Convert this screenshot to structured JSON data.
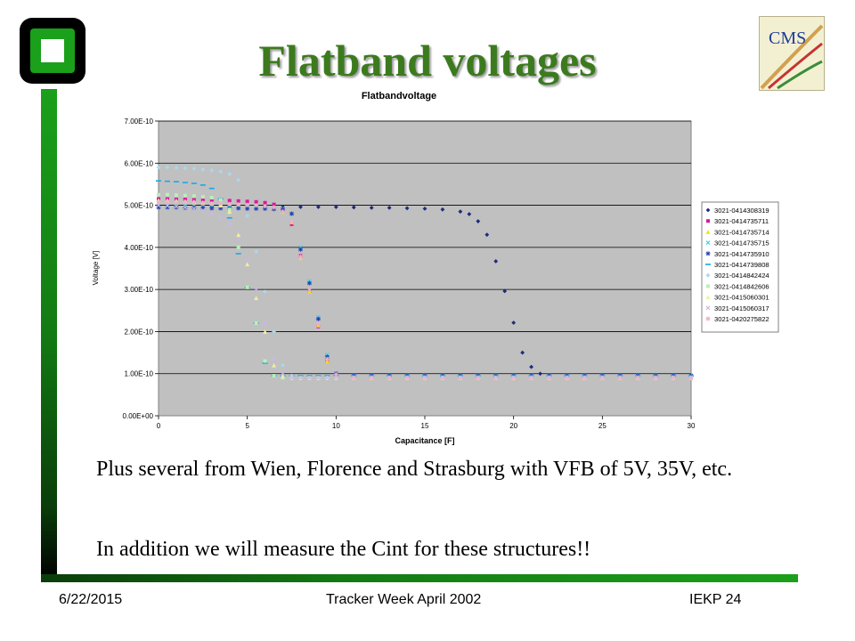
{
  "slide": {
    "title": "Flatband voltages",
    "text1": "Plus several from Wien, Florence and Strasburg with VFB of 5V, 35V, etc.",
    "text2": "In addition we will measure the Cint for these structures!!",
    "footer_date": "6/22/2015",
    "footer_center": "Tracker Week April 2002",
    "footer_right": "IEKP   24",
    "logo_text": "CMS"
  },
  "colors": {
    "title": "#3c7a1e",
    "accent_bar": "#1aa01a",
    "plot_bg": "#c0c0c0"
  },
  "chart_data": {
    "type": "scatter",
    "title": "Flatbandvoltage",
    "xlabel": "Capacitance [F]",
    "ylabel": "Voltage [V]",
    "xlim": [
      0,
      30
    ],
    "ylim": [
      0,
      7e-10
    ],
    "xticks": [
      0,
      5,
      10,
      15,
      20,
      25,
      30
    ],
    "xtick_labels": [
      "0",
      "5",
      "10",
      "15",
      "20",
      "25",
      "30"
    ],
    "yticks": [
      0,
      1e-10,
      2e-10,
      3e-10,
      4e-10,
      5e-10,
      6e-10,
      7e-10
    ],
    "ytick_labels": [
      "0.00E+00",
      "1.00E-10",
      "2.00E-10",
      "3.00E-10",
      "4.00E-10",
      "5.00E-10",
      "6.00E-10",
      "7.00E-10"
    ],
    "grid": true,
    "legend_position": "right",
    "series": [
      {
        "name": "3021-0414308319",
        "color": "#1f2a7a",
        "marker": "diamond",
        "x": [
          0,
          1,
          2,
          3,
          4,
          5,
          6,
          7,
          8,
          9,
          10,
          11,
          12,
          13,
          14,
          15,
          16,
          17,
          17.5,
          18,
          18.5,
          19,
          19.5,
          20,
          20.5,
          21,
          21.5,
          22,
          23,
          24,
          25,
          26,
          27,
          28,
          29,
          30
        ],
        "y": [
          4.97e-10,
          4.97e-10,
          4.97e-10,
          4.97e-10,
          4.97e-10,
          4.97e-10,
          4.96e-10,
          4.96e-10,
          4.96e-10,
          4.96e-10,
          4.96e-10,
          4.95e-10,
          4.94e-10,
          4.94e-10,
          4.93e-10,
          4.92e-10,
          4.9e-10,
          4.85e-10,
          4.79e-10,
          4.62e-10,
          4.3e-10,
          3.67e-10,
          2.96e-10,
          2.21e-10,
          1.5e-10,
          1.16e-10,
          1e-10,
          9.5e-11,
          9.2e-11,
          9.1e-11,
          9e-11,
          9e-11,
          9e-11,
          9e-11,
          9e-11,
          9e-11
        ]
      },
      {
        "name": "3021-0414735711",
        "color": "#d8189c",
        "marker": "square",
        "x": [
          0,
          0.5,
          1,
          1.5,
          2,
          2.5,
          3,
          3.5,
          4,
          4.5,
          5,
          5.5,
          6,
          6.5,
          7,
          7.5,
          8,
          8.5,
          9,
          9.5,
          10,
          11,
          12,
          13,
          14,
          15,
          16,
          17,
          18,
          19,
          20,
          21,
          22,
          23,
          24,
          25,
          26,
          27,
          28,
          29,
          30
        ],
        "y": [
          5.15e-10,
          5.15e-10,
          5.14e-10,
          5.14e-10,
          5.13e-10,
          5.13e-10,
          5.12e-10,
          5.12e-10,
          5.11e-10,
          5.1e-10,
          5.09e-10,
          5.08e-10,
          5.06e-10,
          5.02e-10,
          4.9e-10,
          4.55e-10,
          3.8e-10,
          2.95e-10,
          2.12e-10,
          1.3e-10,
          9.5e-11,
          9e-11,
          9e-11,
          9e-11,
          9e-11,
          9e-11,
          9e-11,
          9e-11,
          9e-11,
          9e-11,
          9e-11,
          9e-11,
          9e-11,
          9e-11,
          9e-11,
          9e-11,
          9e-11,
          9e-11,
          9e-11,
          9e-11,
          9e-11
        ]
      },
      {
        "name": "3021-0414735714",
        "color": "#f0e01a",
        "marker": "triangle",
        "x": [
          0,
          0.5,
          1,
          1.5,
          2,
          2.5,
          3,
          3.5,
          4,
          4.5,
          5,
          5.5,
          6,
          6.5,
          7,
          7.5,
          8,
          8.5,
          9,
          9.5,
          10,
          11,
          12,
          13,
          14,
          15,
          16,
          17,
          18,
          19,
          20,
          21,
          22,
          23,
          24,
          25,
          26,
          27,
          28,
          29,
          30
        ],
        "y": [
          5.08e-10,
          5.08e-10,
          5.07e-10,
          5.07e-10,
          5.06e-10,
          5.05e-10,
          5.04e-10,
          5.04e-10,
          5.03e-10,
          5.02e-10,
          5.01e-10,
          5e-10,
          4.98e-10,
          4.95e-10,
          4.85e-10,
          4.6e-10,
          3.75e-10,
          2.95e-10,
          2.15e-10,
          1.3e-10,
          9.5e-11,
          9e-11,
          9e-11,
          9e-11,
          9e-11,
          9e-11,
          9e-11,
          9e-11,
          9e-11,
          9e-11,
          9e-11,
          9e-11,
          9e-11,
          9e-11,
          9e-11,
          9e-11,
          9e-11,
          9e-11,
          9e-11,
          9e-11,
          9e-11
        ]
      },
      {
        "name": "3021-0414735715",
        "color": "#38d8e8",
        "marker": "x",
        "x": [
          0,
          0.5,
          1,
          1.5,
          2,
          2.5,
          3,
          3.5,
          4,
          4.5,
          5,
          5.5,
          6,
          6.5,
          7,
          7.5,
          8,
          8.5,
          9,
          9.5,
          10,
          11,
          12,
          13,
          14,
          15,
          16,
          17,
          18,
          19,
          20,
          21,
          22,
          23,
          24,
          25,
          26,
          27,
          28,
          29,
          30
        ],
        "y": [
          5e-10,
          5e-10,
          4.99e-10,
          4.99e-10,
          4.98e-10,
          4.98e-10,
          4.97e-10,
          4.97e-10,
          4.96e-10,
          4.96e-10,
          4.96e-10,
          4.95e-10,
          4.95e-10,
          4.94e-10,
          4.92e-10,
          4.8e-10,
          4e-10,
          3.2e-10,
          2.35e-10,
          1.45e-10,
          1e-10,
          9.5e-11,
          9.5e-11,
          9.5e-11,
          9.5e-11,
          9.5e-11,
          9.5e-11,
          9.5e-11,
          9.5e-11,
          9.5e-11,
          9.5e-11,
          9.5e-11,
          9.5e-11,
          9.5e-11,
          9.5e-11,
          9.5e-11,
          9.5e-11,
          9.5e-11,
          9.5e-11,
          9.5e-11,
          9.5e-11
        ]
      },
      {
        "name": "3021-0414735910",
        "color": "#2a3fb0",
        "marker": "star",
        "x": [
          0,
          0.5,
          1,
          1.5,
          2,
          2.5,
          3,
          3.5,
          4,
          4.5,
          5,
          5.5,
          6,
          6.5,
          7,
          7.5,
          8,
          8.5,
          9,
          9.5,
          10,
          11,
          12,
          13,
          14,
          15,
          16,
          17,
          18,
          19,
          20,
          21,
          22,
          23,
          24,
          25,
          26,
          27,
          28,
          29,
          30
        ],
        "y": [
          4.95e-10,
          4.95e-10,
          4.95e-10,
          4.94e-10,
          4.94e-10,
          4.94e-10,
          4.93e-10,
          4.93e-10,
          4.93e-10,
          4.93e-10,
          4.92e-10,
          4.92e-10,
          4.92e-10,
          4.91e-10,
          4.9e-10,
          4.8e-10,
          3.95e-10,
          3.15e-10,
          2.3e-10,
          1.4e-10,
          1e-10,
          9.5e-11,
          9.5e-11,
          9.5e-11,
          9.5e-11,
          9.5e-11,
          9.5e-11,
          9.5e-11,
          9.5e-11,
          9.5e-11,
          9.5e-11,
          9.5e-11,
          9.5e-11,
          9.5e-11,
          9.5e-11,
          9.5e-11,
          9.5e-11,
          9.5e-11,
          9.5e-11,
          9.5e-11,
          9.5e-11
        ]
      },
      {
        "name": "3021-0414739808",
        "color": "#18a8e8",
        "marker": "dash",
        "x": [
          0,
          0.5,
          1,
          1.5,
          2,
          2.5,
          3,
          3.5,
          4,
          4.5,
          5,
          5.5,
          6,
          6.5,
          7,
          7.5,
          8,
          8.5,
          9,
          9.5,
          10,
          11,
          12,
          13,
          14,
          15,
          16,
          17,
          18,
          19,
          20,
          21,
          22,
          23,
          24,
          25,
          26,
          27,
          28,
          29,
          30
        ],
        "y": [
          5.58e-10,
          5.57e-10,
          5.56e-10,
          5.54e-10,
          5.52e-10,
          5.48e-10,
          5.4e-10,
          5.15e-10,
          4.7e-10,
          3.85e-10,
          3.05e-10,
          2.2e-10,
          1.25e-10,
          9.5e-11,
          9.5e-11,
          9.5e-11,
          9.5e-11,
          9.5e-11,
          9.5e-11,
          9.5e-11,
          9.5e-11,
          9.5e-11,
          9.5e-11,
          9.5e-11,
          9.5e-11,
          9.5e-11,
          9.5e-11,
          9.5e-11,
          9.5e-11,
          9.5e-11,
          9.5e-11,
          9.5e-11,
          9.5e-11,
          9.5e-11,
          9.5e-11,
          9.5e-11,
          9.5e-11,
          9.5e-11,
          9.5e-11,
          9.5e-11,
          9.5e-11
        ]
      },
      {
        "name": "3021-0414842424",
        "color": "#a8d8f0",
        "marker": "diamond",
        "x": [
          0,
          0.5,
          1,
          1.5,
          2,
          2.5,
          3,
          3.5,
          4,
          4.5,
          5,
          5.5,
          6,
          6.5,
          7,
          7.5,
          8,
          8.5,
          9,
          9.5,
          10,
          11,
          12,
          13,
          14,
          15,
          16,
          17,
          18,
          19,
          20,
          21,
          22,
          23,
          24,
          25,
          26,
          27,
          28,
          29,
          30
        ],
        "y": [
          5.9e-10,
          5.9e-10,
          5.89e-10,
          5.88e-10,
          5.87e-10,
          5.85e-10,
          5.83e-10,
          5.8e-10,
          5.74e-10,
          5.6e-10,
          4.75e-10,
          3.9e-10,
          2.95e-10,
          2e-10,
          1.2e-10,
          9.5e-11,
          9e-11,
          9e-11,
          9e-11,
          9e-11,
          9e-11,
          9e-11,
          9e-11,
          9e-11,
          9e-11,
          9e-11,
          9e-11,
          9e-11,
          9e-11,
          9e-11,
          9e-11,
          9e-11,
          9e-11,
          9e-11,
          9e-11,
          9e-11,
          9e-11,
          9e-11,
          9e-11,
          9e-11,
          9e-11
        ]
      },
      {
        "name": "3021-0414842606",
        "color": "#b8f0b8",
        "marker": "square",
        "x": [
          0,
          0.5,
          1,
          1.5,
          2,
          2.5,
          3,
          3.5,
          4,
          4.5,
          5,
          5.5,
          6,
          6.5,
          7,
          7.5,
          8,
          8.5,
          9,
          9.5,
          10,
          11,
          12,
          13,
          14,
          15,
          16,
          17,
          18,
          19,
          20,
          21,
          22,
          23,
          24,
          25,
          26,
          27,
          28,
          29,
          30
        ],
        "y": [
          5.25e-10,
          5.25e-10,
          5.24e-10,
          5.23e-10,
          5.22e-10,
          5.2e-10,
          5.18e-10,
          5.12e-10,
          4.9e-10,
          4e-10,
          3.05e-10,
          2.2e-10,
          1.3e-10,
          9.5e-11,
          9e-11,
          9e-11,
          9e-11,
          9e-11,
          9e-11,
          9e-11,
          9e-11,
          9e-11,
          9e-11,
          9e-11,
          9e-11,
          9e-11,
          9e-11,
          9e-11,
          9e-11,
          9e-11,
          9e-11,
          9e-11,
          9e-11,
          9e-11,
          9e-11,
          9e-11,
          9e-11,
          9e-11,
          9e-11,
          9e-11,
          9e-11
        ]
      },
      {
        "name": "3021-0415060301",
        "color": "#f0f0a0",
        "marker": "triangle",
        "x": [
          0,
          0.5,
          1,
          1.5,
          2,
          2.5,
          3,
          3.5,
          4,
          4.5,
          5,
          5.5,
          6,
          6.5,
          7,
          7.5,
          8,
          8.5,
          9,
          9.5,
          10,
          11,
          12,
          13,
          14,
          15,
          16,
          17,
          18,
          19,
          20,
          21,
          22,
          23,
          24,
          25,
          26,
          27,
          28,
          29,
          30
        ],
        "y": [
          5.12e-10,
          5.12e-10,
          5.11e-10,
          5.1e-10,
          5.09e-10,
          5.07e-10,
          5.05e-10,
          5e-10,
          4.85e-10,
          4.3e-10,
          3.6e-10,
          2.8e-10,
          2e-10,
          1.2e-10,
          9.5e-11,
          9e-11,
          9e-11,
          9e-11,
          9e-11,
          9e-11,
          9e-11,
          9e-11,
          9e-11,
          9e-11,
          9e-11,
          9e-11,
          9e-11,
          9e-11,
          9e-11,
          9e-11,
          9e-11,
          9e-11,
          9e-11,
          9e-11,
          9e-11,
          9e-11,
          9e-11,
          9e-11,
          9e-11,
          9e-11,
          9e-11
        ]
      },
      {
        "name": "3021-0415060317",
        "color": "#c8b8e8",
        "marker": "x",
        "x": [
          0,
          0.5,
          1,
          1.5,
          2,
          2.5,
          3,
          3.5,
          4,
          4.5,
          5,
          5.5,
          6,
          6.5,
          7,
          7.5,
          8,
          8.5,
          9,
          9.5,
          10,
          11,
          12,
          13,
          14,
          15,
          16,
          17,
          18,
          19,
          20,
          21,
          22,
          23,
          24,
          25,
          26,
          27,
          28,
          29,
          30
        ],
        "y": [
          5e-10,
          4.99e-10,
          4.97e-10,
          4.95e-10,
          4.92e-10,
          4.88e-10,
          4.8e-10,
          4.7e-10,
          4.55e-10,
          4.2e-10,
          3.7e-10,
          3e-10,
          2.2e-10,
          1.35e-10,
          1e-10,
          9e-11,
          9e-11,
          9e-11,
          9e-11,
          9e-11,
          9e-11,
          9e-11,
          9e-11,
          9e-11,
          9e-11,
          9e-11,
          9e-11,
          9e-11,
          9e-11,
          9e-11,
          9e-11,
          9e-11,
          9e-11,
          9e-11,
          9e-11,
          9e-11,
          9e-11,
          9e-11,
          9e-11,
          9e-11,
          9e-11
        ]
      },
      {
        "name": "3021-0420275822",
        "color": "#f0b0c8",
        "marker": "star",
        "x": [
          0,
          0.5,
          1,
          1.5,
          2,
          2.5,
          3,
          3.5,
          4,
          4.5,
          5,
          5.5,
          6,
          6.5,
          7,
          7.5,
          8,
          8.5,
          9,
          9.5,
          10,
          11,
          12,
          13,
          14,
          15,
          16,
          17,
          18,
          19,
          20,
          21,
          22,
          23,
          24,
          25,
          26,
          27,
          28,
          29,
          30
        ],
        "y": [
          5.08e-10,
          5.08e-10,
          5.07e-10,
          5.07e-10,
          5.06e-10,
          5.05e-10,
          5.04e-10,
          5.04e-10,
          5.03e-10,
          5.02e-10,
          5.01e-10,
          5e-10,
          4.98e-10,
          4.95e-10,
          4.85e-10,
          4.6e-10,
          3.78e-10,
          2.98e-10,
          2.18e-10,
          1.35e-10,
          9.8e-11,
          9e-11,
          9e-11,
          9e-11,
          9e-11,
          9e-11,
          9e-11,
          9e-11,
          9e-11,
          9e-11,
          9e-11,
          9e-11,
          9e-11,
          9e-11,
          9e-11,
          9e-11,
          9e-11,
          9e-11,
          9e-11,
          9e-11,
          9e-11
        ]
      }
    ]
  }
}
